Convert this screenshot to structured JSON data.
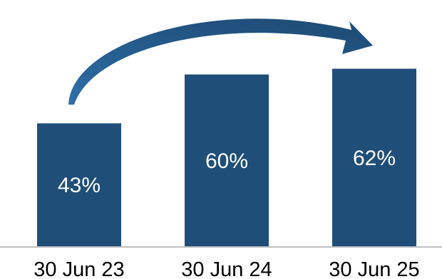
{
  "chart_data": {
    "type": "bar",
    "title": "",
    "xlabel": "",
    "ylabel": "",
    "categories": [
      "30 Jun 23",
      "30 Jun 24",
      "30 Jun 25"
    ],
    "values": [
      43,
      60,
      62
    ],
    "value_labels": [
      "43%",
      "60%",
      "62%"
    ],
    "unit": "%",
    "ylim": [
      0,
      76
    ],
    "grid": false,
    "legend": "none",
    "annotation": "curved arrow from first bar to last bar",
    "colors": {
      "bar": "#1F4E79",
      "arrow": "#1F4E79",
      "baseline": "#BFBFBF",
      "bar_label": "#FFFFFF",
      "axis_label": "#000000"
    }
  }
}
